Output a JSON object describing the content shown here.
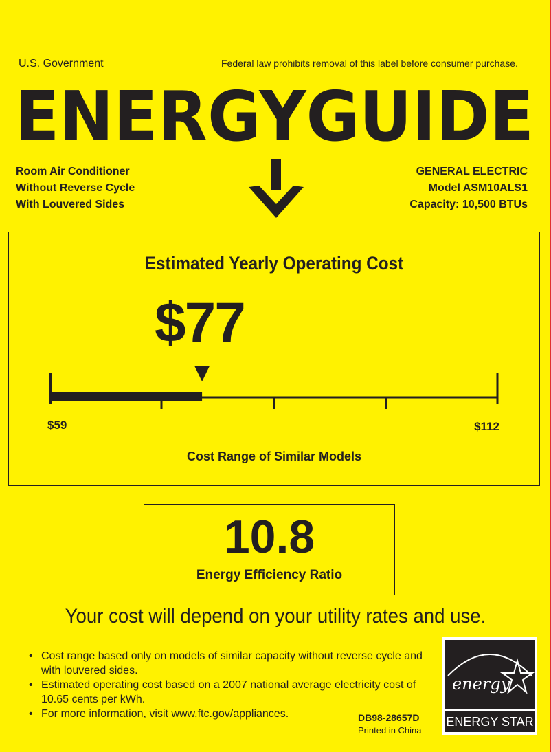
{
  "header": {
    "gov": "U.S. Government",
    "law": "Federal law prohibits removal of this label before consumer purchase.",
    "logo_text": "ENERGYGUIDE"
  },
  "product": {
    "lines": [
      "Room Air Conditioner",
      "Without Reverse Cycle",
      "With Louvered Sides"
    ]
  },
  "maker": {
    "brand": "GENERAL ELECTRIC",
    "model": "Model ASM10ALS1",
    "capacity": "Capacity: 10,500 BTUs"
  },
  "cost": {
    "title": "Estimated Yearly Operating Cost",
    "value": "$77",
    "amount": 77,
    "min": 59,
    "max": 112,
    "min_label": "$59",
    "max_label": "$112",
    "range_label": "Cost Range of Similar Models"
  },
  "eer": {
    "value": "10.8",
    "label": "Energy Efficiency Ratio"
  },
  "depend": "Your cost will depend on your utility rates and use.",
  "bullets": [
    "Cost range based only on models of similar capacity without reverse cycle and with louvered sides.",
    "Estimated operating cost based on a 2007 national average electricity cost of 10.65 cents per kWh.",
    "For more information, visit www.ftc.gov/appliances."
  ],
  "code": "DB98-28657D",
  "printed": "Printed in China",
  "energy_star": {
    "script": "energy",
    "label": "ENERGY STAR"
  },
  "colors": {
    "background": "#fff200",
    "ink": "#231f20"
  }
}
